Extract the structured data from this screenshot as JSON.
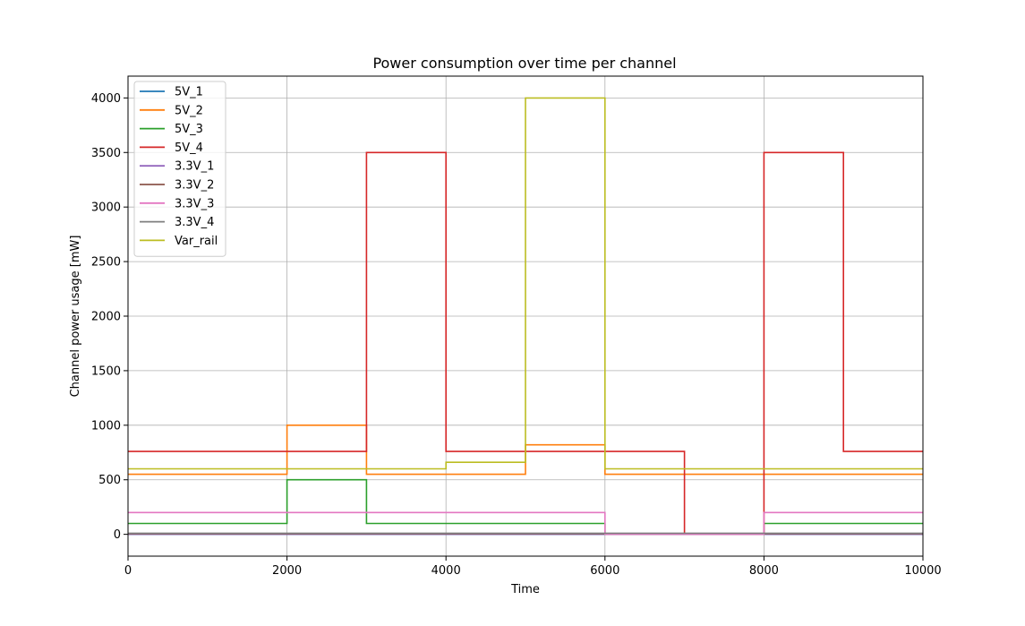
{
  "chart_data": {
    "type": "line",
    "title": "Power consumption over time per channel",
    "xlabel": "Time",
    "ylabel": "Channel power usage [mW]",
    "xlim": [
      0,
      10000
    ],
    "ylim": [
      -200,
      4200
    ],
    "xticks": [
      0,
      2000,
      4000,
      6000,
      8000,
      10000
    ],
    "yticks": [
      0,
      500,
      1000,
      1500,
      2000,
      2500,
      3000,
      3500,
      4000
    ],
    "grid": true,
    "legend_position": "upper-left",
    "series": [
      {
        "name": "5V_1",
        "color": "#1f77b4",
        "x": [
          0,
          10000
        ],
        "y": [
          0,
          0
        ]
      },
      {
        "name": "5V_2",
        "color": "#ff7f0e",
        "x": [
          0,
          2000,
          2000,
          3000,
          3000,
          5000,
          5000,
          6000,
          6000,
          10000
        ],
        "y": [
          550,
          550,
          1000,
          1000,
          550,
          550,
          820,
          820,
          550,
          550
        ]
      },
      {
        "name": "5V_3",
        "color": "#2ca02c",
        "x": [
          0,
          2000,
          2000,
          3000,
          3000,
          6000,
          6000,
          8000,
          8000,
          10000
        ],
        "y": [
          100,
          100,
          500,
          500,
          100,
          100,
          0,
          0,
          100,
          100
        ]
      },
      {
        "name": "5V_4",
        "color": "#d62728",
        "x": [
          0,
          3000,
          3000,
          4000,
          4000,
          7000,
          7000,
          8000,
          8000,
          9000,
          9000,
          10000
        ],
        "y": [
          760,
          760,
          3500,
          3500,
          760,
          760,
          0,
          0,
          3500,
          3500,
          760,
          760
        ]
      },
      {
        "name": "3.3V_1",
        "color": "#9467bd",
        "x": [
          0,
          10000
        ],
        "y": [
          0,
          0
        ]
      },
      {
        "name": "3.3V_2",
        "color": "#8c564b",
        "x": [
          0,
          10000
        ],
        "y": [
          5,
          5
        ]
      },
      {
        "name": "3.3V_3",
        "color": "#e377c2",
        "x": [
          0,
          6000,
          6000,
          8000,
          8000,
          10000
        ],
        "y": [
          200,
          200,
          0,
          0,
          200,
          200
        ]
      },
      {
        "name": "3.3V_4",
        "color": "#7f7f7f",
        "x": [
          0,
          10000
        ],
        "y": [
          10,
          10
        ]
      },
      {
        "name": "Var_rail",
        "color": "#bcbd22",
        "x": [
          0,
          4000,
          4000,
          5000,
          5000,
          6000,
          6000,
          10000
        ],
        "y": [
          600,
          600,
          660,
          660,
          4000,
          4000,
          600,
          600
        ]
      }
    ]
  }
}
